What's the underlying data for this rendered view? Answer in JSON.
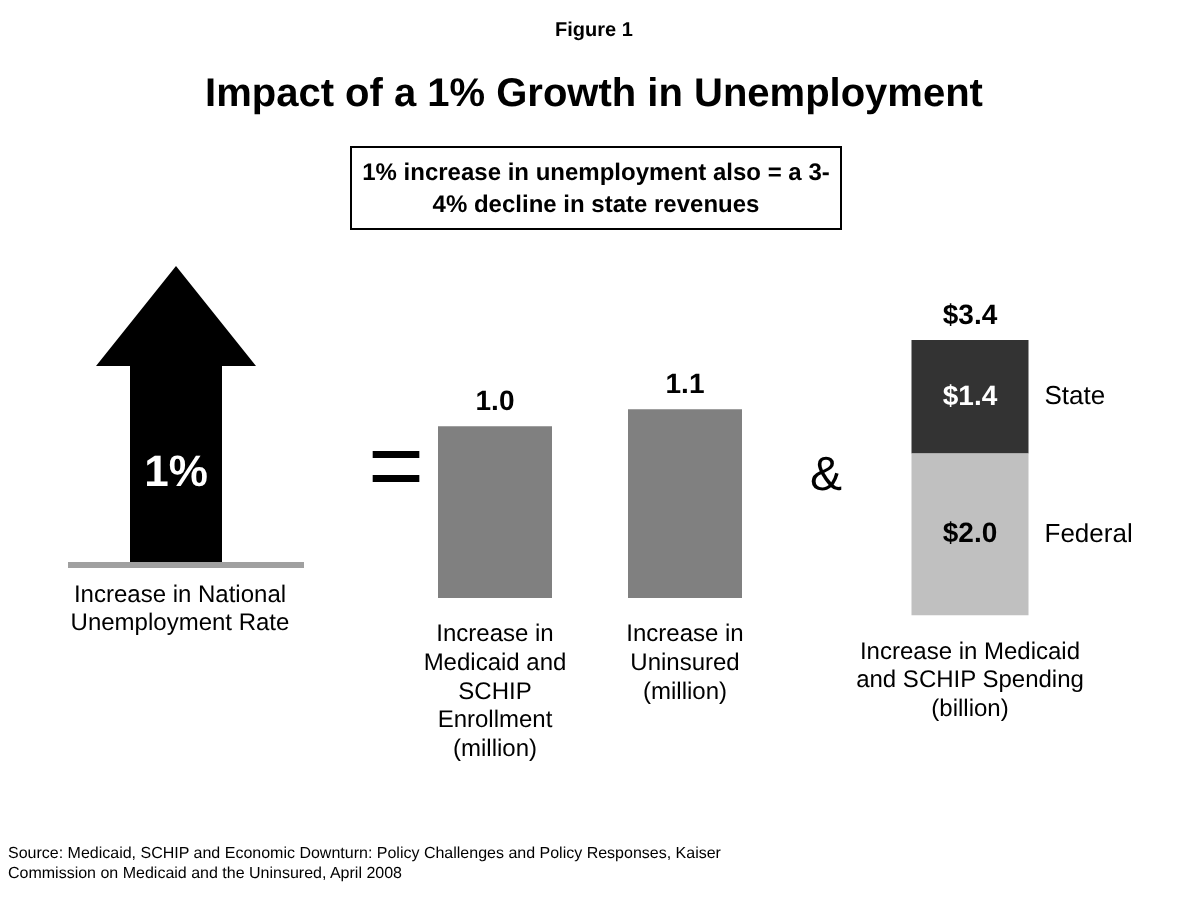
{
  "chart_data": [
    {
      "type": "other",
      "title": "Impact of a 1% Growth in Unemployment",
      "annotations": [
        "Figure 1",
        "1% increase in unemployment also = a 3-4% decline in state revenues",
        "1%",
        "Increase in National Unemployment Rate",
        "=",
        "&",
        "Source: Medicaid, SCHIP and Economic Downturn: Policy Challenges and Policy Responses, Kaiser Commission on Medicaid and the Uninsured, April 2008"
      ]
    },
    {
      "type": "bar",
      "categories": [
        "Increase in Medicaid and SCHIP Enrollment (million)",
        "Increase in Uninsured (million)"
      ],
      "values": [
        1.0,
        1.1
      ],
      "value_labels": [
        "1.0",
        "1.1"
      ],
      "color": "#808080"
    },
    {
      "type": "bar",
      "stacked": true,
      "categories": [
        "Increase in Medicaid and SCHIP Spending (billion)"
      ],
      "series": [
        {
          "name": "Federal",
          "color": "#c0c0c0",
          "values": [
            2.0
          ],
          "value_labels": [
            "$2.0"
          ]
        },
        {
          "name": "State",
          "color": "#333333",
          "values": [
            1.4
          ],
          "value_labels": [
            "$1.4"
          ]
        }
      ],
      "totals": [
        "$3.4"
      ]
    }
  ]
}
